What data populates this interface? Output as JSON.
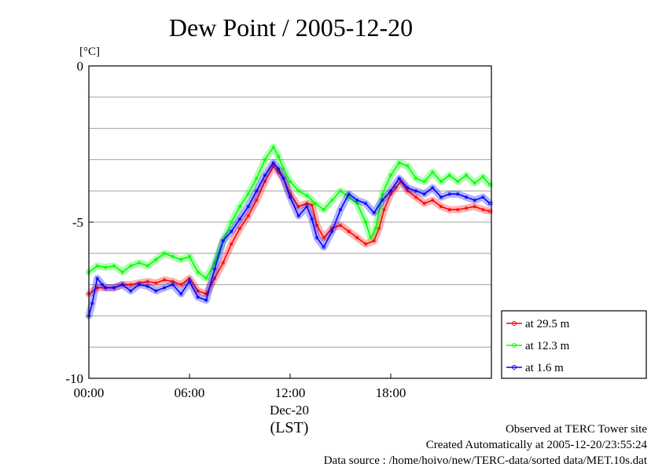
{
  "chart_data": {
    "type": "line",
    "title": "Dew Point / 2005-12-20",
    "ylabel": "[°C]",
    "xlabel": "(LST)",
    "x_date_label": "Dec-20",
    "ylim": [
      -10,
      0
    ],
    "xlim": [
      0,
      24
    ],
    "y_ticks": [
      {
        "value": 0,
        "label": "0"
      },
      {
        "value": -5,
        "label": "-5"
      },
      {
        "value": -10,
        "label": "-10"
      }
    ],
    "y_gridlines": [
      -1,
      -2,
      -3,
      -4,
      -5,
      -6,
      -7,
      -8,
      -9
    ],
    "x_ticks": [
      {
        "value": 0,
        "label": "00:00"
      },
      {
        "value": 6,
        "label": "06:00"
      },
      {
        "value": 12,
        "label": "12:00"
      },
      {
        "value": 18,
        "label": "18:00"
      }
    ],
    "legend_position": "lower-right, outside plot",
    "series": [
      {
        "name": "at 29.5 m",
        "color": "#ff0000",
        "points": [
          [
            0,
            -7.3
          ],
          [
            0.5,
            -7.1
          ],
          [
            1,
            -7.1
          ],
          [
            1.5,
            -7.1
          ],
          [
            2,
            -7.0
          ],
          [
            2.5,
            -7.0
          ],
          [
            3,
            -6.95
          ],
          [
            3.5,
            -6.9
          ],
          [
            4,
            -6.95
          ],
          [
            4.5,
            -6.85
          ],
          [
            5,
            -6.9
          ],
          [
            5.5,
            -7.0
          ],
          [
            6,
            -6.8
          ],
          [
            6.5,
            -7.2
          ],
          [
            7,
            -7.3
          ],
          [
            7.5,
            -6.8
          ],
          [
            8,
            -6.3
          ],
          [
            8.5,
            -5.7
          ],
          [
            9,
            -5.2
          ],
          [
            9.5,
            -4.8
          ],
          [
            10,
            -4.3
          ],
          [
            10.5,
            -3.7
          ],
          [
            11,
            -3.2
          ],
          [
            11.3,
            -3.4
          ],
          [
            11.6,
            -3.6
          ],
          [
            12,
            -4.1
          ],
          [
            12.5,
            -4.5
          ],
          [
            13,
            -4.4
          ],
          [
            13.3,
            -4.45
          ],
          [
            13.6,
            -5.1
          ],
          [
            14,
            -5.5
          ],
          [
            14.5,
            -5.2
          ],
          [
            15,
            -5.1
          ],
          [
            15.5,
            -5.3
          ],
          [
            16,
            -5.5
          ],
          [
            16.5,
            -5.7
          ],
          [
            17,
            -5.6
          ],
          [
            17.3,
            -5.2
          ],
          [
            17.6,
            -4.6
          ],
          [
            18,
            -4.1
          ],
          [
            18.3,
            -3.9
          ],
          [
            18.6,
            -3.7
          ],
          [
            19,
            -4.0
          ],
          [
            19.5,
            -4.2
          ],
          [
            20,
            -4.4
          ],
          [
            20.5,
            -4.3
          ],
          [
            21,
            -4.5
          ],
          [
            21.5,
            -4.6
          ],
          [
            22,
            -4.6
          ],
          [
            22.5,
            -4.55
          ],
          [
            23,
            -4.5
          ],
          [
            23.5,
            -4.6
          ],
          [
            23.9,
            -4.65
          ]
        ]
      },
      {
        "name": "at 12.3 m",
        "color": "#00ff00",
        "points": [
          [
            0,
            -6.6
          ],
          [
            0.5,
            -6.4
          ],
          [
            1,
            -6.45
          ],
          [
            1.5,
            -6.4
          ],
          [
            2,
            -6.6
          ],
          [
            2.5,
            -6.4
          ],
          [
            3,
            -6.3
          ],
          [
            3.5,
            -6.4
          ],
          [
            4,
            -6.2
          ],
          [
            4.5,
            -6.0
          ],
          [
            5,
            -6.1
          ],
          [
            5.5,
            -6.2
          ],
          [
            6,
            -6.1
          ],
          [
            6.5,
            -6.6
          ],
          [
            7,
            -6.8
          ],
          [
            7.5,
            -6.3
          ],
          [
            8,
            -5.6
          ],
          [
            8.5,
            -5.0
          ],
          [
            9,
            -4.5
          ],
          [
            9.5,
            -4.1
          ],
          [
            10,
            -3.6
          ],
          [
            10.5,
            -3.0
          ],
          [
            11,
            -2.6
          ],
          [
            11.3,
            -2.9
          ],
          [
            11.6,
            -3.3
          ],
          [
            12,
            -3.7
          ],
          [
            12.5,
            -4.0
          ],
          [
            13,
            -4.15
          ],
          [
            13.5,
            -4.4
          ],
          [
            14,
            -4.6
          ],
          [
            14.5,
            -4.3
          ],
          [
            15,
            -4.0
          ],
          [
            15.5,
            -4.2
          ],
          [
            16,
            -4.4
          ],
          [
            16.5,
            -5.0
          ],
          [
            16.8,
            -5.5
          ],
          [
            17.1,
            -5.2
          ],
          [
            17.5,
            -4.1
          ],
          [
            18,
            -3.5
          ],
          [
            18.5,
            -3.1
          ],
          [
            19,
            -3.2
          ],
          [
            19.5,
            -3.6
          ],
          [
            20,
            -3.7
          ],
          [
            20.5,
            -3.4
          ],
          [
            21,
            -3.7
          ],
          [
            21.5,
            -3.5
          ],
          [
            22,
            -3.7
          ],
          [
            22.5,
            -3.5
          ],
          [
            23,
            -3.75
          ],
          [
            23.5,
            -3.55
          ],
          [
            23.9,
            -3.8
          ]
        ]
      },
      {
        "name": "at 1.6 m",
        "color": "#0000ff",
        "points": [
          [
            0,
            -8.0
          ],
          [
            0.2,
            -7.6
          ],
          [
            0.5,
            -6.8
          ],
          [
            0.8,
            -7.0
          ],
          [
            1,
            -7.1
          ],
          [
            1.5,
            -7.1
          ],
          [
            2,
            -7.0
          ],
          [
            2.5,
            -7.2
          ],
          [
            3,
            -7.0
          ],
          [
            3.5,
            -7.05
          ],
          [
            4,
            -7.2
          ],
          [
            4.5,
            -7.1
          ],
          [
            5,
            -7.0
          ],
          [
            5.5,
            -7.3
          ],
          [
            6,
            -6.9
          ],
          [
            6.5,
            -7.4
          ],
          [
            7,
            -7.5
          ],
          [
            7.5,
            -6.5
          ],
          [
            8,
            -5.6
          ],
          [
            8.5,
            -5.3
          ],
          [
            9,
            -4.9
          ],
          [
            9.5,
            -4.5
          ],
          [
            10,
            -4.0
          ],
          [
            10.5,
            -3.5
          ],
          [
            11,
            -3.1
          ],
          [
            11.3,
            -3.3
          ],
          [
            11.6,
            -3.6
          ],
          [
            12,
            -4.2
          ],
          [
            12.5,
            -4.8
          ],
          [
            13,
            -4.5
          ],
          [
            13.3,
            -4.9
          ],
          [
            13.6,
            -5.5
          ],
          [
            14,
            -5.8
          ],
          [
            14.5,
            -5.3
          ],
          [
            15,
            -4.6
          ],
          [
            15.5,
            -4.1
          ],
          [
            16,
            -4.3
          ],
          [
            16.5,
            -4.4
          ],
          [
            17,
            -4.7
          ],
          [
            17.5,
            -4.3
          ],
          [
            18,
            -4.0
          ],
          [
            18.5,
            -3.6
          ],
          [
            19,
            -3.9
          ],
          [
            19.5,
            -4.0
          ],
          [
            20,
            -4.1
          ],
          [
            20.5,
            -3.9
          ],
          [
            21,
            -4.2
          ],
          [
            21.5,
            -4.1
          ],
          [
            22,
            -4.1
          ],
          [
            22.5,
            -4.2
          ],
          [
            23,
            -4.3
          ],
          [
            23.5,
            -4.2
          ],
          [
            23.9,
            -4.4
          ]
        ]
      }
    ]
  },
  "footer": {
    "line1": "Observed at TERC Tower site",
    "line2": "Created Automatically at 2005-12-20/23:55:24",
    "line3": "Data source : /home/hoivo/new/TERC-data/sorted  data/MET.10s.dat"
  }
}
